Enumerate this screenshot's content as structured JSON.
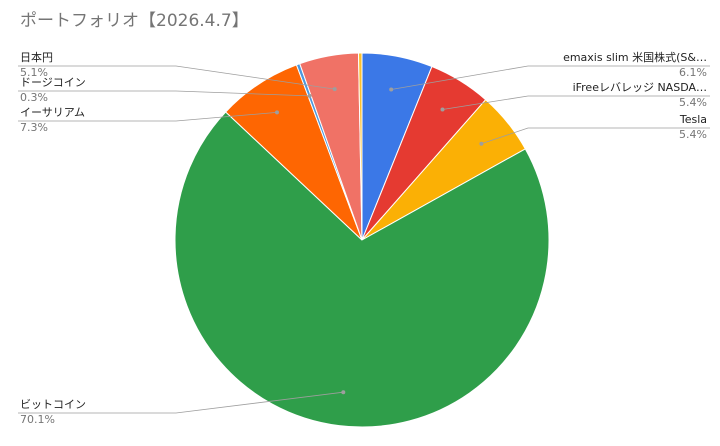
{
  "chart_data": {
    "type": "pie",
    "title": "ポートフォリオ【2026.4.7】",
    "slices": [
      {
        "name": "emaxis slim 米国株式(S&…",
        "value": 6.1,
        "label": "6.1%",
        "color": "#3b78e7"
      },
      {
        "name": "iFreeレバレッジ NASDA…",
        "value": 5.4,
        "label": "5.4%",
        "color": "#e53a31"
      },
      {
        "name": "Tesla",
        "value": 5.4,
        "label": "5.4%",
        "color": "#fbb005"
      },
      {
        "name": "ビットコイン",
        "value": 70.1,
        "label": "70.1%",
        "color": "#2f9e4a"
      },
      {
        "name": "イーサリアム",
        "value": 7.3,
        "label": "7.3%",
        "color": "#fe6602"
      },
      {
        "name": "ドージコイン",
        "value": 0.3,
        "label": "0.3%",
        "color": "#4c98de"
      },
      {
        "name": "日本円",
        "value": 5.1,
        "label": "5.1%",
        "color": "#f07266"
      },
      {
        "name": "",
        "value": 0.3,
        "label": "",
        "color": "#fbc02d"
      }
    ]
  }
}
